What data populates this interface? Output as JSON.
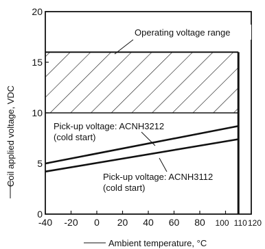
{
  "chart_data": {
    "type": "line",
    "xlabel": "Ambient temperature, °C",
    "ylabel": "Coil applied voltage, VDC",
    "xlim": [
      -40,
      120
    ],
    "ylim": [
      0,
      20
    ],
    "grid": false,
    "x_ticks": [
      -40,
      -20,
      0,
      20,
      40,
      60,
      80,
      100,
      110,
      120
    ],
    "y_ticks": [
      0,
      5,
      10,
      15,
      20
    ],
    "x_tick_labels": [
      "-40",
      "-20",
      "0",
      "20",
      "40",
      "60",
      "80",
      "100",
      "110",
      "120"
    ],
    "y_tick_labels": [
      "0",
      "5",
      "10",
      "15",
      "20"
    ],
    "gridlines_y": [
      10,
      16
    ],
    "operating_range": {
      "label": "Operating voltage range",
      "x": [
        -40,
        110
      ],
      "y": [
        10,
        16
      ]
    },
    "series": [
      {
        "name": "Pick-up voltage: ACNH3212 (cold start)",
        "label_lines": [
          "Pick-up voltage: ACNH3212",
          "(cold start)"
        ],
        "x": [
          -40,
          110
        ],
        "y": [
          5.0,
          8.7
        ]
      },
      {
        "name": "Pick-up voltage: ACNH3112 (cold start)",
        "label_lines": [
          "Pick-up voltage: ACNH3112",
          "(cold start)"
        ],
        "x": [
          -40,
          110
        ],
        "y": [
          4.2,
          7.4
        ]
      }
    ],
    "boundary_x": 110
  }
}
